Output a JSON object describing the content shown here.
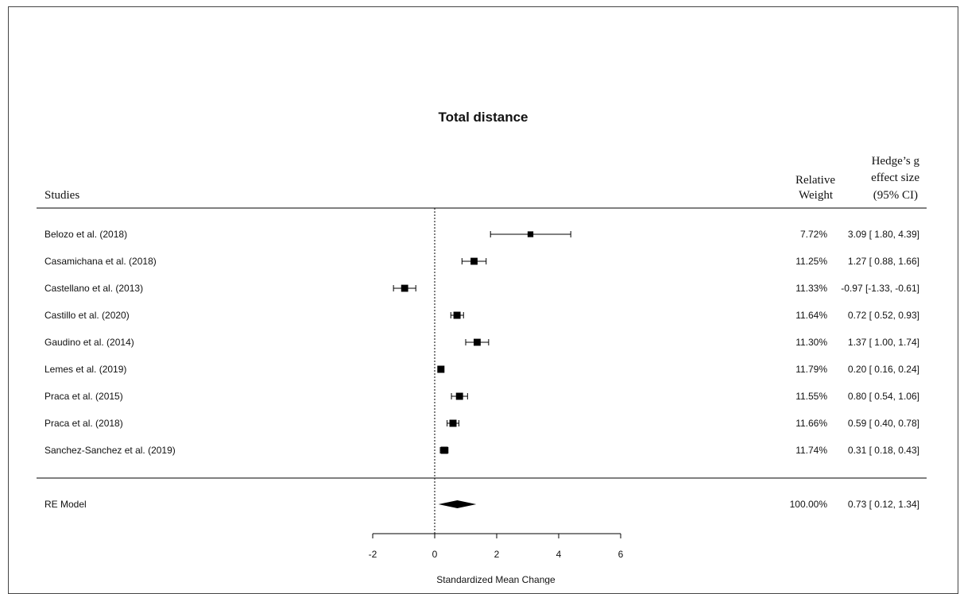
{
  "chart_data": {
    "type": "forest",
    "title": "Total distance",
    "headers": {
      "studies": "Studies",
      "weight_line1": "Relative",
      "weight_line2": "Weight",
      "effect_line1": "Hedge’s g",
      "effect_line2": "effect size",
      "effect_line3": "(95% CI)"
    },
    "studies": [
      {
        "label": "Belozo et al. (2018)",
        "weight": "7.72%",
        "estimate": 3.09,
        "lower": 1.8,
        "upper": 4.39,
        "ci_text": "3.09 [ 1.80,  4.39]"
      },
      {
        "label": "Casamichana et al. (2018)",
        "weight": "11.25%",
        "estimate": 1.27,
        "lower": 0.88,
        "upper": 1.66,
        "ci_text": "1.27 [ 0.88,  1.66]"
      },
      {
        "label": "Castellano et al. (2013)",
        "weight": "11.33%",
        "estimate": -0.97,
        "lower": -1.33,
        "upper": -0.61,
        "ci_text": "-0.97 [-1.33, -0.61]"
      },
      {
        "label": "Castillo et al. (2020)",
        "weight": "11.64%",
        "estimate": 0.72,
        "lower": 0.52,
        "upper": 0.93,
        "ci_text": "0.72 [ 0.52,  0.93]"
      },
      {
        "label": "Gaudino et al. (2014)",
        "weight": "11.30%",
        "estimate": 1.37,
        "lower": 1.0,
        "upper": 1.74,
        "ci_text": "1.37 [ 1.00,  1.74]"
      },
      {
        "label": "Lemes et al. (2019)",
        "weight": "11.79%",
        "estimate": 0.2,
        "lower": 0.16,
        "upper": 0.24,
        "ci_text": "0.20 [ 0.16,  0.24]"
      },
      {
        "label": "Praca et al. (2015)",
        "weight": "11.55%",
        "estimate": 0.8,
        "lower": 0.54,
        "upper": 1.06,
        "ci_text": "0.80 [ 0.54,  1.06]"
      },
      {
        "label": "Praca et al. (2018)",
        "weight": "11.66%",
        "estimate": 0.59,
        "lower": 0.4,
        "upper": 0.78,
        "ci_text": "0.59 [ 0.40,  0.78]"
      },
      {
        "label": "Sanchez-Sanchez et al. (2019)",
        "weight": "11.74%",
        "estimate": 0.31,
        "lower": 0.18,
        "upper": 0.43,
        "ci_text": "0.31 [ 0.18,  0.43]"
      }
    ],
    "summary": {
      "label": "RE Model",
      "weight": "100.00%",
      "estimate": 0.73,
      "lower": 0.12,
      "upper": 1.34,
      "ci_text": "0.73 [ 0.12,  1.34]"
    },
    "x_axis": {
      "label": "Standardized Mean Change",
      "ticks": [
        -2,
        0,
        2,
        4,
        6
      ],
      "range": [
        -2,
        6
      ],
      "reference_line": 0
    },
    "colors": {
      "ink": "#000000",
      "text": "#111111"
    }
  }
}
